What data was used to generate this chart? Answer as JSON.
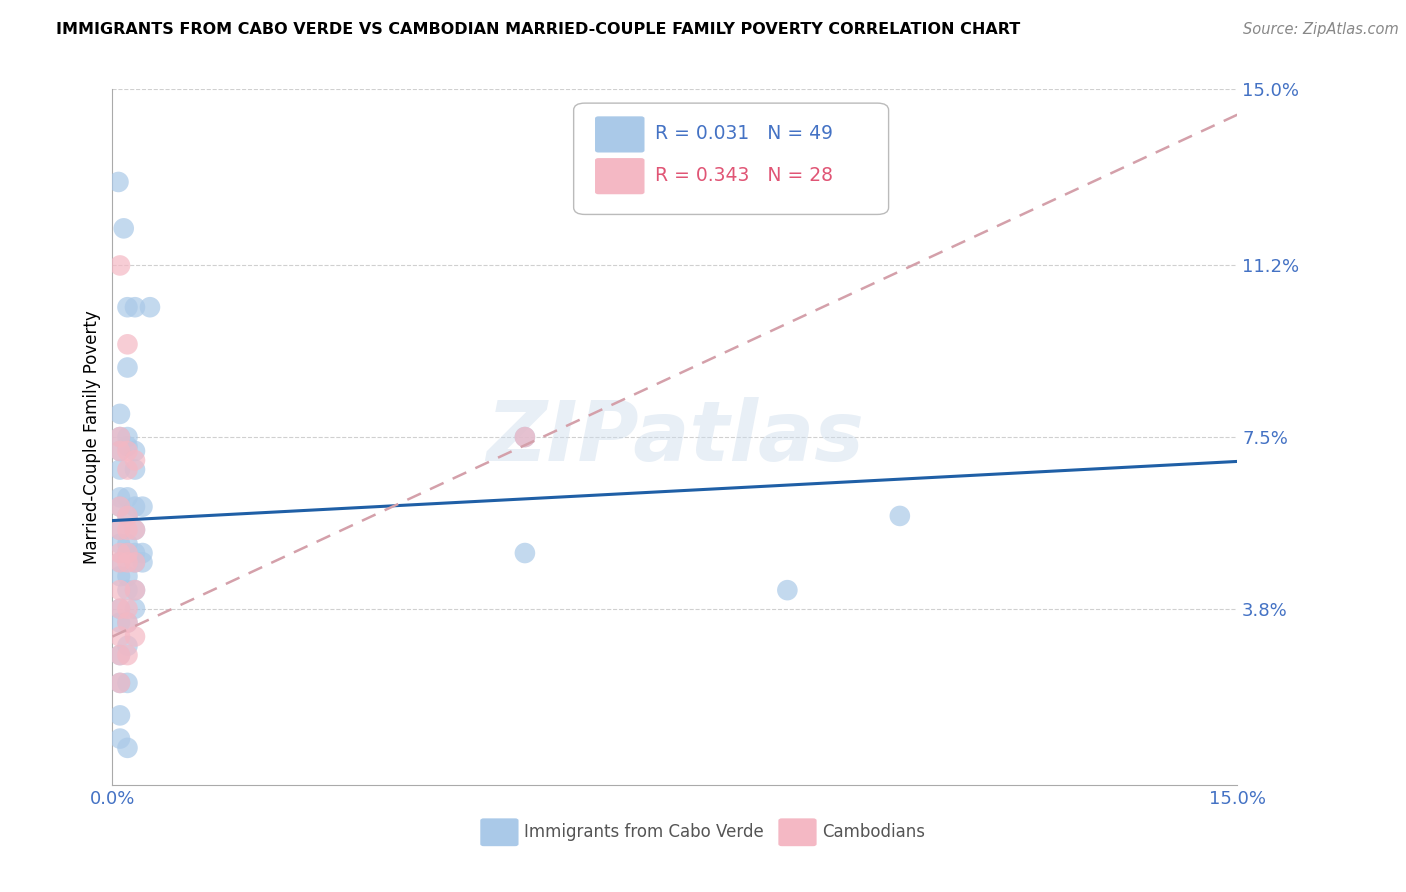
{
  "title": "IMMIGRANTS FROM CABO VERDE VS CAMBODIAN MARRIED-COUPLE FAMILY POVERTY CORRELATION CHART",
  "source": "Source: ZipAtlas.com",
  "ylabel": "Married-Couple Family Poverty",
  "xmin": 0.0,
  "xmax": 0.15,
  "ymin": 0.0,
  "ymax": 0.15,
  "yticks": [
    0.038,
    0.075,
    0.112,
    0.15
  ],
  "ytick_labels": [
    "3.8%",
    "7.5%",
    "11.2%",
    "15.0%"
  ],
  "xtick_positions": [
    0.0,
    0.03,
    0.06,
    0.09,
    0.12,
    0.15
  ],
  "xtick_labels": [
    "0.0%",
    "",
    "",
    "",
    "",
    "15.0%"
  ],
  "legend_r_values": [
    "0.031",
    "0.343"
  ],
  "legend_n_values": [
    "49",
    "28"
  ],
  "watermark": "ZIPatlas",
  "blue_color": "#aac9e8",
  "pink_color": "#f4b8c4",
  "blue_line_color": "#1f5fa6",
  "pink_line_color": "#e8758a",
  "pink_dash_color": "#d4a0aa",
  "grid_color": "#d0d0d0",
  "legend_blue_text": "#4472c4",
  "legend_pink_text": "#e05575",
  "cabo_verde_points": [
    [
      0.0008,
      0.13
    ],
    [
      0.0015,
      0.12
    ],
    [
      0.002,
      0.103
    ],
    [
      0.003,
      0.103
    ],
    [
      0.005,
      0.103
    ],
    [
      0.002,
      0.09
    ],
    [
      0.001,
      0.08
    ],
    [
      0.001,
      0.075
    ],
    [
      0.001,
      0.072
    ],
    [
      0.002,
      0.075
    ],
    [
      0.002,
      0.073
    ],
    [
      0.003,
      0.072
    ],
    [
      0.003,
      0.068
    ],
    [
      0.001,
      0.068
    ],
    [
      0.001,
      0.062
    ],
    [
      0.001,
      0.06
    ],
    [
      0.002,
      0.062
    ],
    [
      0.002,
      0.058
    ],
    [
      0.003,
      0.06
    ],
    [
      0.003,
      0.055
    ],
    [
      0.004,
      0.06
    ],
    [
      0.001,
      0.055
    ],
    [
      0.001,
      0.052
    ],
    [
      0.002,
      0.052
    ],
    [
      0.002,
      0.05
    ],
    [
      0.003,
      0.05
    ],
    [
      0.003,
      0.048
    ],
    [
      0.004,
      0.05
    ],
    [
      0.004,
      0.048
    ],
    [
      0.001,
      0.048
    ],
    [
      0.001,
      0.045
    ],
    [
      0.002,
      0.045
    ],
    [
      0.002,
      0.042
    ],
    [
      0.003,
      0.042
    ],
    [
      0.003,
      0.038
    ],
    [
      0.001,
      0.038
    ],
    [
      0.001,
      0.035
    ],
    [
      0.002,
      0.035
    ],
    [
      0.002,
      0.03
    ],
    [
      0.001,
      0.028
    ],
    [
      0.001,
      0.022
    ],
    [
      0.002,
      0.022
    ],
    [
      0.001,
      0.015
    ],
    [
      0.001,
      0.01
    ],
    [
      0.002,
      0.008
    ],
    [
      0.055,
      0.075
    ],
    [
      0.055,
      0.05
    ],
    [
      0.09,
      0.042
    ],
    [
      0.105,
      0.058
    ]
  ],
  "cambodian_points": [
    [
      0.001,
      0.112
    ],
    [
      0.002,
      0.095
    ],
    [
      0.001,
      0.075
    ],
    [
      0.001,
      0.072
    ],
    [
      0.002,
      0.072
    ],
    [
      0.002,
      0.068
    ],
    [
      0.003,
      0.07
    ],
    [
      0.001,
      0.06
    ],
    [
      0.001,
      0.055
    ],
    [
      0.002,
      0.058
    ],
    [
      0.002,
      0.055
    ],
    [
      0.003,
      0.055
    ],
    [
      0.001,
      0.05
    ],
    [
      0.001,
      0.048
    ],
    [
      0.002,
      0.05
    ],
    [
      0.002,
      0.048
    ],
    [
      0.003,
      0.048
    ],
    [
      0.003,
      0.042
    ],
    [
      0.001,
      0.042
    ],
    [
      0.001,
      0.038
    ],
    [
      0.002,
      0.038
    ],
    [
      0.002,
      0.035
    ],
    [
      0.003,
      0.032
    ],
    [
      0.001,
      0.032
    ],
    [
      0.001,
      0.028
    ],
    [
      0.002,
      0.028
    ],
    [
      0.001,
      0.022
    ],
    [
      0.055,
      0.075
    ]
  ],
  "cabo_verde_intercept": 0.057,
  "cabo_verde_slope": 0.085,
  "cambodian_intercept": 0.032,
  "cambodian_slope": 0.75
}
